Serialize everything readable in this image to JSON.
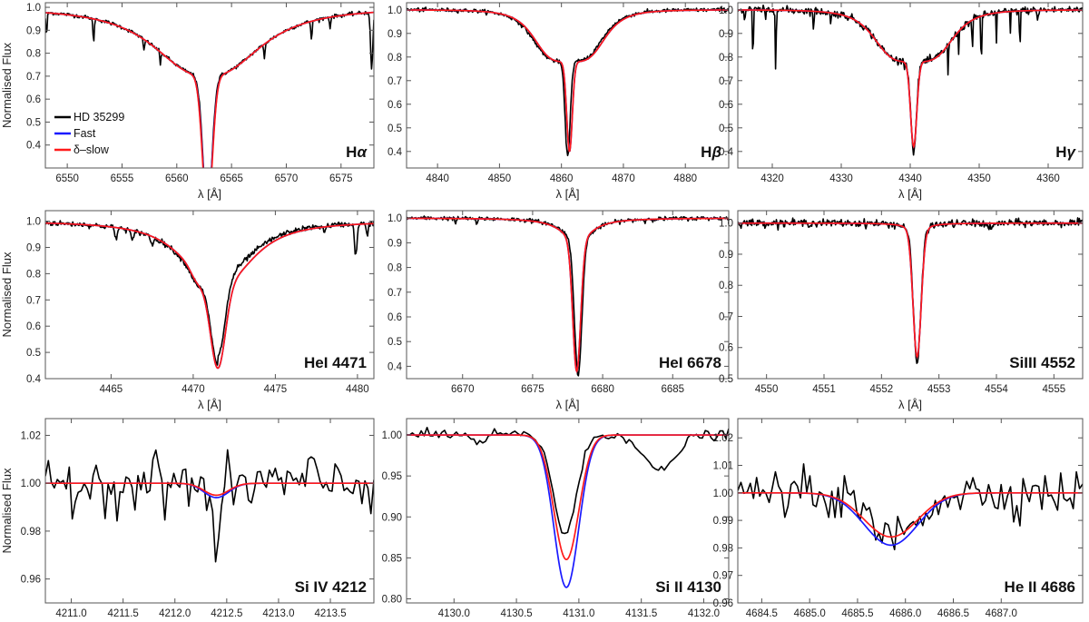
{
  "figure": {
    "y_axis_label": "Normalised Flux",
    "x_axis_label": "λ [Å]"
  },
  "legend": [
    {
      "label": "HD 35299",
      "color": "#000000"
    },
    {
      "label": "Fast",
      "color": "#1a1aff"
    },
    {
      "label": "δ–slow",
      "color": "#ff1a1a"
    }
  ],
  "chart_data": [
    {
      "type": "line",
      "title": "Hα",
      "title_main": "H",
      "title_greek": "α",
      "xlabel": "λ [Å]",
      "ylabel": "Normalised Flux",
      "xlim": [
        6548,
        6578
      ],
      "ylim": [
        0.3,
        1.02
      ],
      "xticks": [
        6550,
        6555,
        6560,
        6565,
        6570,
        6575
      ],
      "yticks": [
        0.4,
        0.5,
        0.6,
        0.7,
        0.8,
        0.9,
        1.0
      ],
      "ydec": 1,
      "xdec": 0,
      "profile": {
        "center": 6562.8,
        "core": {
          "depth": 0.6,
          "width": 0.45
        },
        "wing": {
          "depth": 0.3,
          "width": 5.5,
          "gamma": 2.5
        },
        "fast_core_depth": 0.57,
        "obs_offset": 0.0,
        "obs_depth_scale": 0.98,
        "blends": [
          {
            "x": 6552.4,
            "d": 0.1,
            "w": 0.06
          },
          {
            "x": 6557.0,
            "d": 0.05,
            "w": 0.06
          },
          {
            "x": 6558.5,
            "d": 0.06,
            "w": 0.05
          },
          {
            "x": 6568.0,
            "d": 0.06,
            "w": 0.06
          },
          {
            "x": 6572.3,
            "d": 0.08,
            "w": 0.06
          },
          {
            "x": 6574.0,
            "d": 0.05,
            "w": 0.05
          },
          {
            "x": 6577.8,
            "d": 0.25,
            "w": 0.1
          },
          {
            "x": 6548.1,
            "d": 0.1,
            "w": 0.06
          }
        ],
        "noise": 0.004
      }
    },
    {
      "type": "line",
      "title": "Hβ",
      "title_main": "H",
      "title_greek": "β",
      "xlabel": "λ [Å]",
      "ylabel": "",
      "xlim": [
        4835,
        4887
      ],
      "ylim": [
        0.33,
        1.03
      ],
      "xticks": [
        4840,
        4850,
        4860,
        4870,
        4880
      ],
      "yticks": [
        0.4,
        0.5,
        0.6,
        0.7,
        0.8,
        0.9,
        1.0
      ],
      "ydec": 1,
      "xdec": 0,
      "profile": {
        "center": 4861.3,
        "core": {
          "depth": 0.38,
          "width": 0.45
        },
        "wing": {
          "depth": 0.22,
          "width": 6.0,
          "gamma": 4.0
        },
        "fast_core_depth": 0.38,
        "obs_offset": -0.3,
        "obs_depth_scale": 1.05,
        "blends": [],
        "noise": 0.004
      }
    },
    {
      "type": "line",
      "title": "Hγ",
      "title_main": "H",
      "title_greek": "γ",
      "xlabel": "λ [Å]",
      "ylabel": "",
      "xlim": [
        4315,
        4365
      ],
      "ylim": [
        0.33,
        1.03
      ],
      "xticks": [
        4320,
        4330,
        4340,
        4350,
        4360
      ],
      "yticks": [
        0.4,
        0.5,
        0.6,
        0.7,
        0.8,
        0.9,
        1.0
      ],
      "ydec": 1,
      "xdec": 0,
      "profile": {
        "center": 4340.5,
        "core": {
          "depth": 0.36,
          "width": 0.45
        },
        "wing": {
          "depth": 0.22,
          "width": 6.0,
          "gamma": 4.0
        },
        "fast_core_depth": 0.36,
        "obs_offset": 0.0,
        "obs_depth_scale": 1.05,
        "blends": [
          {
            "x": 4316.0,
            "d": 0.08,
            "w": 0.05
          },
          {
            "x": 4317.2,
            "d": 0.25,
            "w": 0.06
          },
          {
            "x": 4319.0,
            "d": 0.06,
            "w": 0.05
          },
          {
            "x": 4320.5,
            "d": 0.25,
            "w": 0.06
          },
          {
            "x": 4326.0,
            "d": 0.12,
            "w": 0.05
          },
          {
            "x": 4328.5,
            "d": 0.08,
            "w": 0.05
          },
          {
            "x": 4345.5,
            "d": 0.15,
            "w": 0.05
          },
          {
            "x": 4347.0,
            "d": 0.1,
            "w": 0.05
          },
          {
            "x": 4349.0,
            "d": 0.18,
            "w": 0.05
          },
          {
            "x": 4350.3,
            "d": 0.3,
            "w": 0.05
          },
          {
            "x": 4352.5,
            "d": 0.12,
            "w": 0.05
          },
          {
            "x": 4354.5,
            "d": 0.1,
            "w": 0.05
          },
          {
            "x": 4355.9,
            "d": 0.22,
            "w": 0.05
          },
          {
            "x": 4358.5,
            "d": 0.08,
            "w": 0.05
          }
        ],
        "noise": 0.008
      }
    },
    {
      "type": "line",
      "title": "HeI 4471",
      "xlabel": "λ [Å]",
      "ylabel": "Normalised Flux",
      "xlim": [
        4461,
        4481
      ],
      "ylim": [
        0.4,
        1.04
      ],
      "xticks": [
        4465,
        4470,
        4475,
        4480
      ],
      "yticks": [
        0.4,
        0.5,
        0.6,
        0.7,
        0.8,
        0.9,
        1.0
      ],
      "ydec": 1,
      "xdec": 0,
      "profile": {
        "center": 4471.5,
        "core": {
          "depth": 0.32,
          "width": 0.45
        },
        "wing": {
          "depth": 0.24,
          "width": 2.5,
          "gamma": 2.4
        },
        "fast_core_depth": 0.32,
        "obs_offset": 0.02,
        "obs_depth_scale": 0.95,
        "extra_model": [
          {
            "x": 4470.2,
            "d": 0.03,
            "w": 0.35
          }
        ],
        "blends": [
          {
            "x": 4465.3,
            "d": 0.04,
            "w": 0.08
          },
          {
            "x": 4466.3,
            "d": 0.04,
            "w": 0.08
          },
          {
            "x": 4467.5,
            "d": 0.03,
            "w": 0.08
          },
          {
            "x": 4478.0,
            "d": 0.02,
            "w": 0.08
          },
          {
            "x": 4479.9,
            "d": 0.12,
            "w": 0.08
          },
          {
            "x": 4480.6,
            "d": 0.05,
            "w": 0.06
          }
        ],
        "obs_wing_shift": 0.04,
        "noise": 0.005
      }
    },
    {
      "type": "line",
      "title": "HeI 6678",
      "xlabel": "λ [Å]",
      "ylabel": "",
      "xlim": [
        6666,
        6689
      ],
      "ylim": [
        0.35,
        1.03
      ],
      "xticks": [
        6670,
        6675,
        6680,
        6685
      ],
      "yticks": [
        0.4,
        0.5,
        0.6,
        0.7,
        0.8,
        0.9,
        1.0
      ],
      "ydec": 1,
      "xdec": 0,
      "profile": {
        "center": 6678.15,
        "core": {
          "depth": 0.52,
          "width": 0.28
        },
        "wing": {
          "depth": 0.1,
          "width": 1.2,
          "gamma": 2.0
        },
        "fast_core_depth": 0.52,
        "obs_offset": 0.1,
        "obs_depth_scale": 1.04,
        "blends": [
          {
            "x": 6669.5,
            "d": 0.02,
            "w": 0.06
          },
          {
            "x": 6671.0,
            "d": 0.02,
            "w": 0.08
          },
          {
            "x": 6683.0,
            "d": 0.01,
            "w": 0.06
          }
        ],
        "noise": 0.004
      }
    },
    {
      "type": "line",
      "title": "SiIII 4552",
      "xlabel": "λ [Å]",
      "ylabel": "",
      "xlim": [
        4549.5,
        4555.5
      ],
      "ylim": [
        0.5,
        1.04
      ],
      "xticks": [
        4550,
        4551,
        4552,
        4553,
        4554,
        4555
      ],
      "yticks": [
        0.5,
        0.6,
        0.7,
        0.8,
        0.9,
        1.0
      ],
      "ydec": 1,
      "xdec": 0,
      "profile": {
        "center": 4552.62,
        "core": {
          "depth": 0.4,
          "width": 0.07
        },
        "wing": {
          "depth": 0.03,
          "width": 0.18,
          "gamma": 2.0
        },
        "fast_core_depth": 0.4,
        "obs_offset": 0.0,
        "obs_depth_scale": 1.05,
        "blends": [
          {
            "x": 4553.9,
            "d": 0.015,
            "w": 0.06
          }
        ],
        "noise": 0.006
      }
    },
    {
      "type": "line",
      "title": "Si IV 4212",
      "xlabel": "λ [Å]",
      "ylabel": "Normalised Flux",
      "xlim": [
        4210.75,
        4213.92
      ],
      "ylim": [
        0.95,
        1.027
      ],
      "xticks": [
        4211.0,
        4211.5,
        4212.0,
        4212.5,
        4213.0,
        4213.5
      ],
      "yticks": [
        0.96,
        0.98,
        1.0,
        1.02
      ],
      "ydec": 2,
      "xdec": 1,
      "profile": {
        "center": 4212.4,
        "core": {
          "depth": 0.005,
          "width": 0.12
        },
        "wing": {
          "depth": 0.0,
          "width": 0.3,
          "gamma": 2.0
        },
        "fast_core_depth": 0.006,
        "obs_offset": 0.0,
        "obs_depth_scale": 1.0,
        "blends": [
          {
            "x": 4212.4,
            "d": 0.02,
            "w": 0.04
          }
        ],
        "noise": 0.006
      }
    },
    {
      "type": "line",
      "title": "Si II 4130",
      "xlabel": "λ [Å]",
      "ylabel": "",
      "xlim": [
        4129.62,
        4132.2
      ],
      "ylim": [
        0.795,
        1.02
      ],
      "xticks": [
        4130.0,
        4130.5,
        4131.0,
        4131.5,
        4132.0
      ],
      "yticks": [
        0.8,
        0.85,
        0.9,
        0.95,
        1.0
      ],
      "ydec": 2,
      "xdec": 1,
      "profile": {
        "center": 4130.9,
        "core": {
          "depth": 0.152,
          "width": 0.1
        },
        "wing": {
          "depth": 0.0,
          "width": 0.3,
          "gamma": 2.0
        },
        "fast_core_depth": 0.186,
        "obs_offset": -0.01,
        "obs_depth_scale": 0.8,
        "blends": [
          {
            "x": 4131.65,
            "d": 0.045,
            "w": 0.12
          },
          {
            "x": 4130.2,
            "d": 0.01,
            "w": 0.05
          }
        ],
        "noise": 0.003
      }
    },
    {
      "type": "line",
      "title": "He II 4686",
      "xlabel": "λ [Å]",
      "ylabel": "",
      "xlim": [
        4684.25,
        4687.85
      ],
      "ylim": [
        0.96,
        1.027
      ],
      "xticks": [
        4684.5,
        4685.0,
        4685.5,
        4686.0,
        4686.5,
        4687.0
      ],
      "yticks": [
        0.96,
        0.97,
        0.98,
        0.99,
        1.0,
        1.01,
        1.02
      ],
      "ydec": 2,
      "xdec": 1,
      "profile": {
        "center": 4685.85,
        "core": {
          "depth": 0.016,
          "width": 0.28
        },
        "wing": {
          "depth": 0.0,
          "width": 0.3,
          "gamma": 2.0
        },
        "fast_core_depth": 0.019,
        "obs_offset": 0.0,
        "obs_depth_scale": 1.0,
        "blends": [],
        "noise": 0.004
      }
    }
  ]
}
